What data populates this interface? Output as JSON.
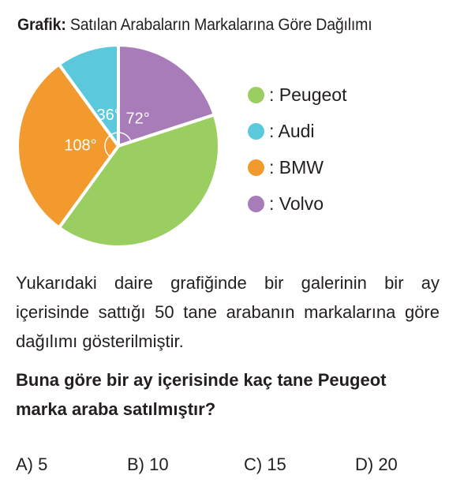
{
  "title": {
    "label": "Grafik:",
    "text": "Satılan Arabaların Markalarına Göre Dağılımı"
  },
  "chart_data": {
    "type": "pie",
    "title": "Grafik: Satılan Arabaların Markalarına Göre Dağılımı",
    "unit": "degrees",
    "slices": [
      {
        "name": "Volvo",
        "value": 72,
        "label": "72°",
        "color": "#a87bb9"
      },
      {
        "name": "Peugeot",
        "value": 144,
        "label": "",
        "color": "#9bce60"
      },
      {
        "name": "BMW",
        "value": 108,
        "label": "108°",
        "color": "#f39a2e"
      },
      {
        "name": "Audi",
        "value": 36,
        "label": "36°",
        "color": "#5bc8dc"
      }
    ],
    "legend_position": "right"
  },
  "legend": [
    {
      "label": ": Peugeot",
      "color": "#9bce60"
    },
    {
      "label": ": Audi",
      "color": "#5bc8dc"
    },
    {
      "label": ": BMW",
      "color": "#f39a2e"
    },
    {
      "label": ": Volvo",
      "color": "#a87bb9"
    }
  ],
  "question": {
    "text": "Yukarıdaki daire grafiğinde bir galerinin bir ay içerisinde sattığı 50 tane arabanın markalarına göre dağılımı gösterilmiştir.",
    "prompt": "Buna göre bir ay içerisinde kaç tane Peugeot marka araba satılmıştır?"
  },
  "options": [
    {
      "label": "A) 5"
    },
    {
      "label": "B) 10"
    },
    {
      "label": "C) 15"
    },
    {
      "label": "D) 20"
    }
  ]
}
